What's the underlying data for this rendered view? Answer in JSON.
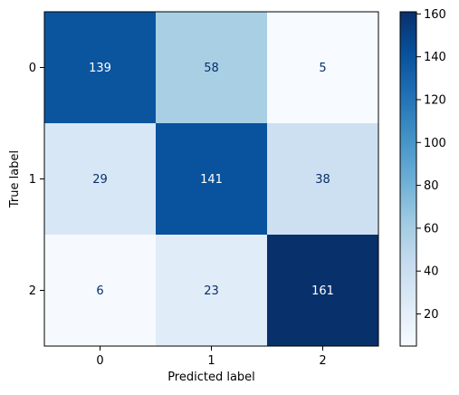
{
  "chart_data": {
    "type": "heatmap",
    "xlabel": "Predicted label",
    "ylabel": "True label",
    "x_categories": [
      "0",
      "1",
      "2"
    ],
    "y_categories": [
      "0",
      "1",
      "2"
    ],
    "values": [
      [
        139,
        58,
        5
      ],
      [
        29,
        141,
        38
      ],
      [
        6,
        23,
        161
      ]
    ],
    "cmap": "Blues",
    "vmin": 5,
    "vmax": 161,
    "colorbar": {
      "ticks": [
        20,
        40,
        60,
        80,
        100,
        120,
        140,
        160
      ],
      "labels": [
        "20",
        "40",
        "60",
        "80",
        "100",
        "120",
        "140",
        "160"
      ]
    },
    "text_colors": {
      "dark": "#08306b",
      "light": "#ffffff"
    }
  }
}
